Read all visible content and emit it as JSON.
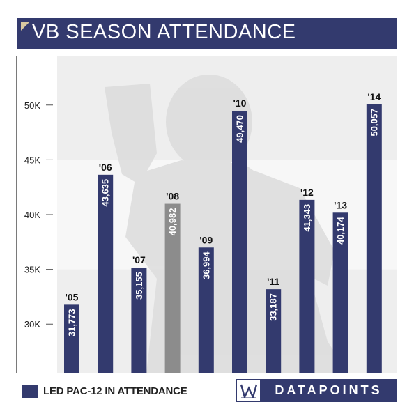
{
  "title": "VB SEASON ATTENDANCE",
  "legend": {
    "label": "LED PAC-12 IN ATTENDANCE"
  },
  "logo": {
    "text": "DATAPOINTS"
  },
  "colors": {
    "navy": "#333a6e",
    "gray": "#8c8c8c",
    "band": "#eeeeee"
  },
  "chart_data": {
    "type": "bar",
    "title": "VB SEASON ATTENDANCE",
    "xlabel": "",
    "ylabel": "",
    "categories": [
      "'05",
      "'06",
      "'07",
      "'08",
      "'09",
      "'10",
      "'11",
      "'12",
      "'13",
      "'14"
    ],
    "values": [
      31773,
      43635,
      35155,
      40982,
      36994,
      49470,
      33187,
      41343,
      40174,
      50057
    ],
    "value_labels": [
      "31,773",
      "43,635",
      "35,155",
      "40,982",
      "36,994",
      "49,470",
      "33,187",
      "41,343",
      "40,174",
      "50,057"
    ],
    "led_pac12": [
      true,
      true,
      true,
      false,
      true,
      true,
      true,
      true,
      true,
      true
    ],
    "yticks": [
      30000,
      35000,
      40000,
      45000,
      50000
    ],
    "ytick_labels": [
      "30K",
      "35K",
      "40K",
      "45K",
      "50K"
    ],
    "ylim": [
      25500,
      54500
    ],
    "grid": false,
    "legend": "bottom-left"
  }
}
